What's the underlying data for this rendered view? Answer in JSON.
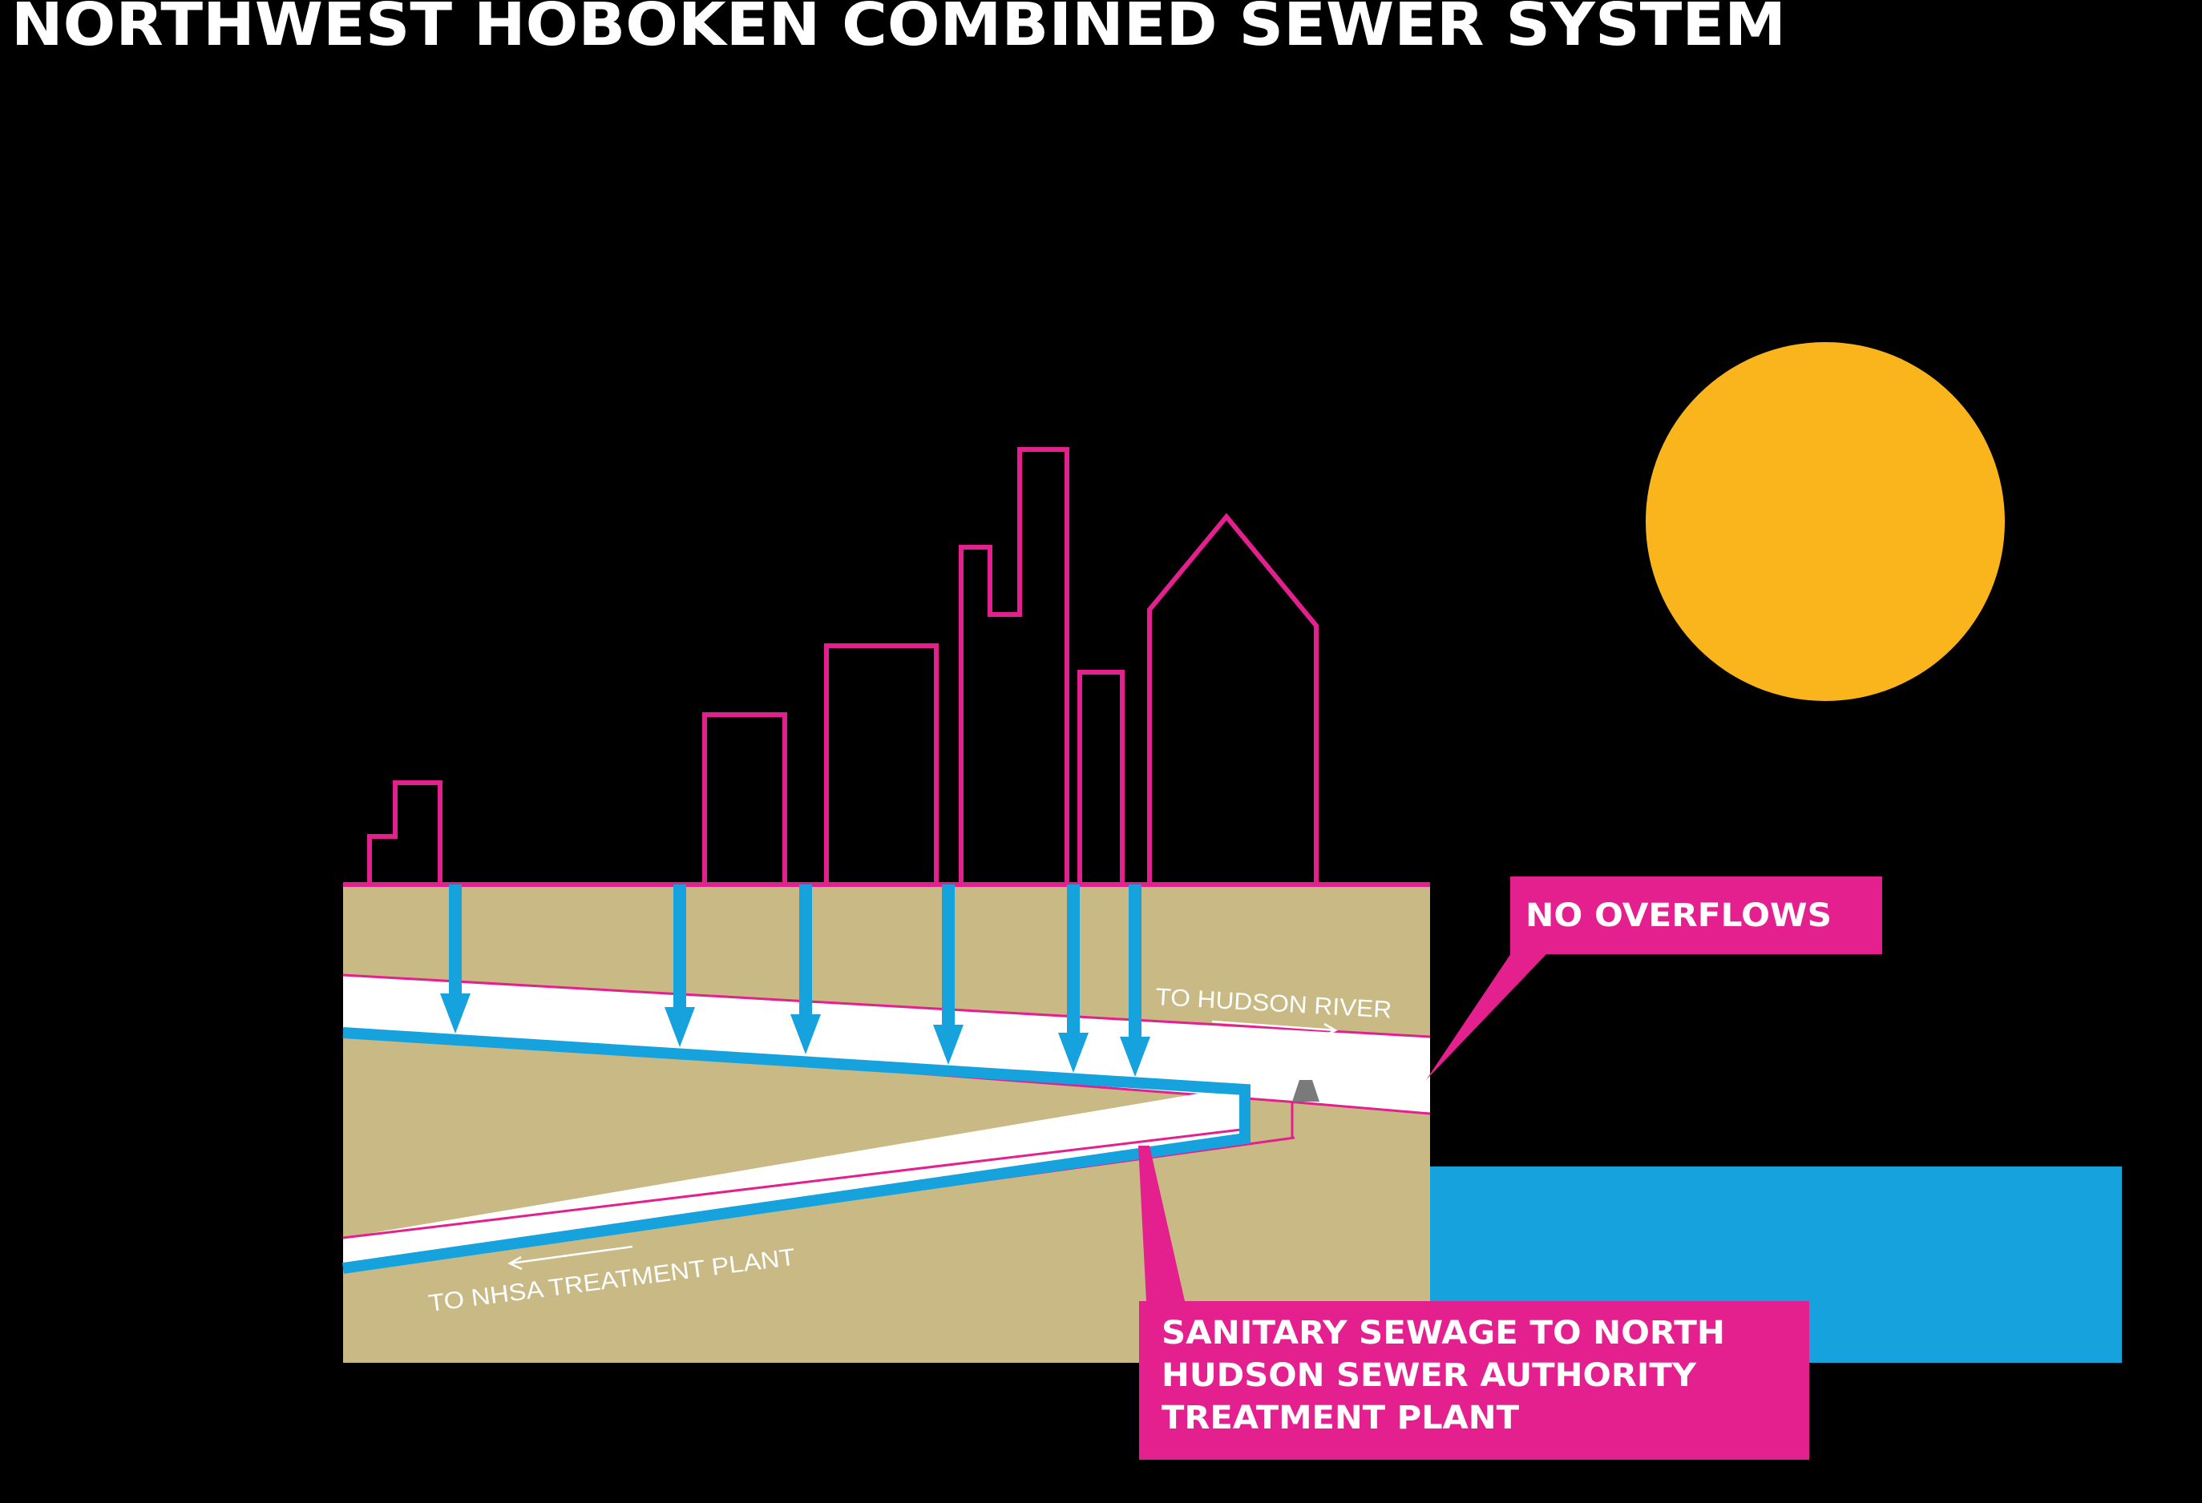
{
  "title": "NORTHWEST HOBOKEN COMBINED SEWER SYSTEM",
  "labels": {
    "hudson_pipe": "TO HUDSON RIVER",
    "treatment_pipe": "TO NHSA TREATMENT PLANT"
  },
  "callouts": {
    "no_overflows": "NO OVERFLOWS",
    "sanitary": {
      "line1": "SANITARY SEWAGE TO NORTH",
      "line2": "HUDSON SEWER AUTHORITY",
      "line3": "TREATMENT PLANT"
    }
  },
  "colors": {
    "background": "#000000",
    "building_outline": "#e3208e",
    "ground": "#c8b985",
    "water": "#16a2dc",
    "sun": "#fbb51c",
    "pipe_interior": "#ffffff",
    "callout_box": "#e3208e",
    "weir": "#7a7a7a"
  },
  "icons": {
    "sun": "sun-circle",
    "drain_arrows": "down-arrow",
    "weir": "overflow-weir"
  }
}
